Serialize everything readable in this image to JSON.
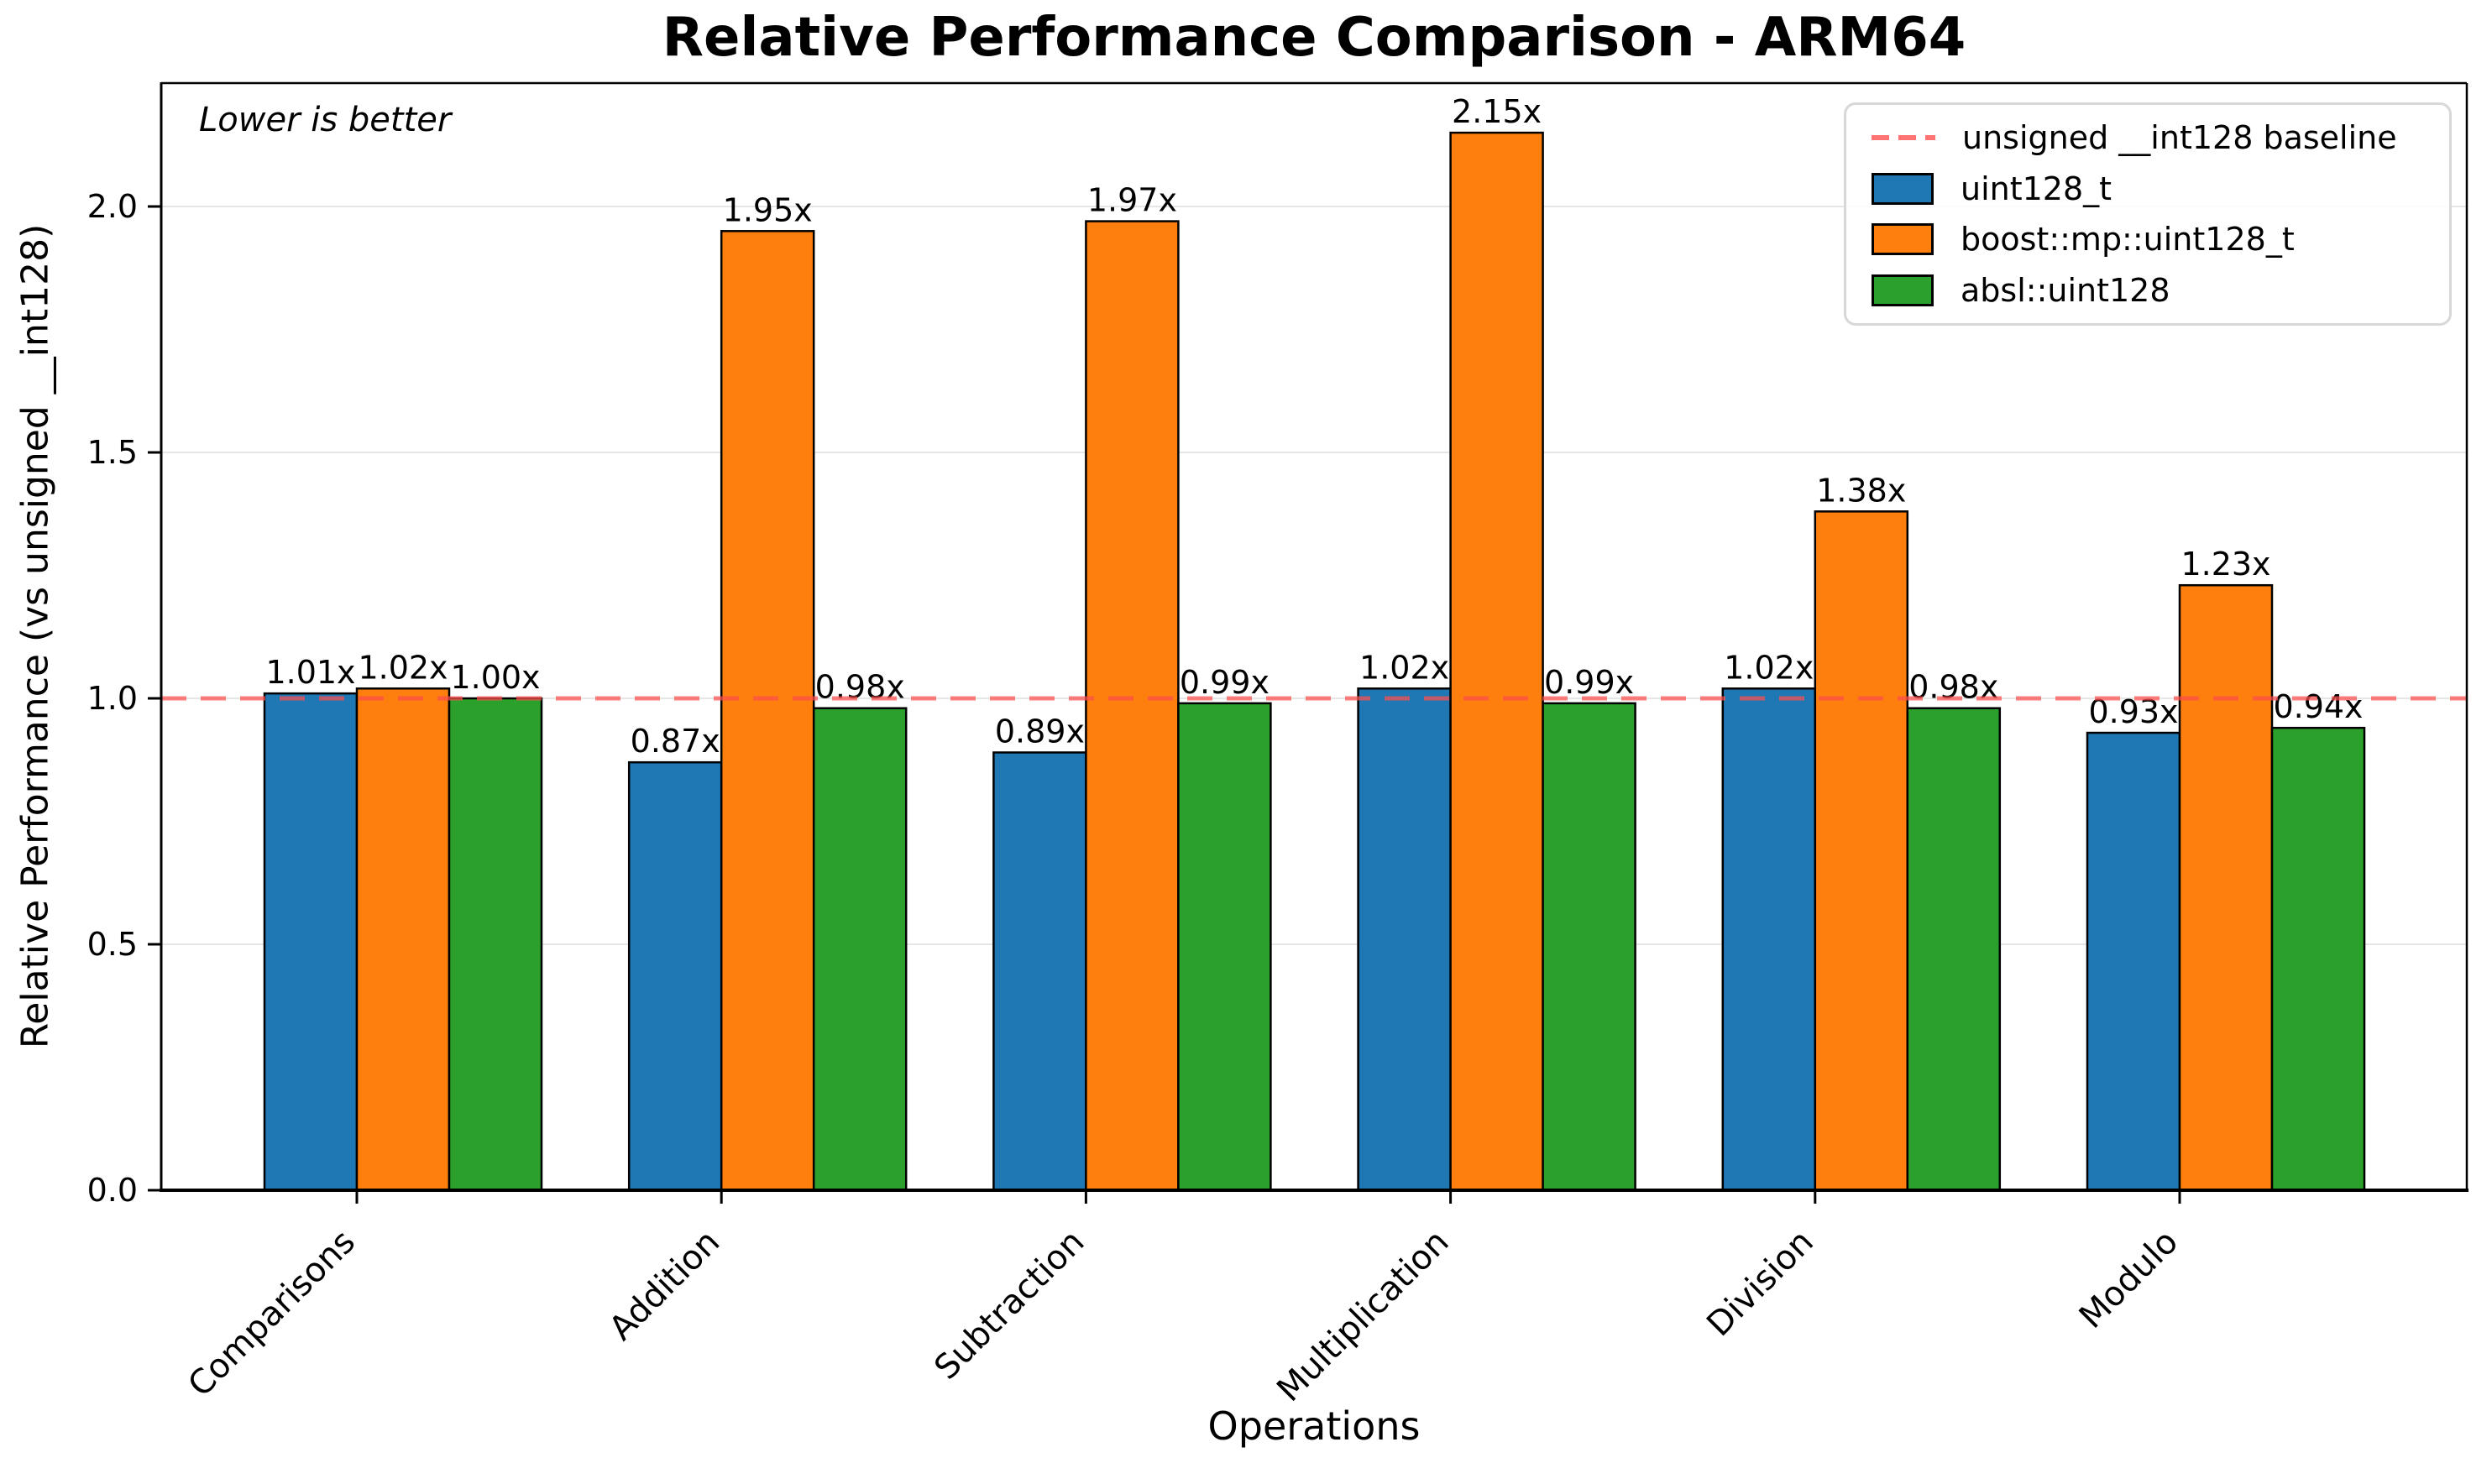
{
  "chart_data": {
    "type": "bar",
    "title": "Relative Performance Comparison - ARM64",
    "xlabel": "Operations",
    "ylabel": "Relative Performance (vs unsigned __int128)",
    "annotation": "Lower is better",
    "categories": [
      "Comparisons",
      "Addition",
      "Subtraction",
      "Multiplication",
      "Division",
      "Modulo"
    ],
    "series": [
      {
        "name": "uint128_t",
        "color": "#1f77b4",
        "values": [
          1.01,
          0.87,
          0.89,
          1.02,
          1.02,
          0.93
        ]
      },
      {
        "name": "boost::mp::uint128_t",
        "color": "#ff7f0e",
        "values": [
          1.02,
          1.95,
          1.97,
          2.15,
          1.38,
          1.23
        ]
      },
      {
        "name": "absl::uint128",
        "color": "#2ca02c",
        "values": [
          1.0,
          0.98,
          0.99,
          0.99,
          0.98,
          0.94
        ]
      }
    ],
    "bar_label_suffix": "x",
    "baseline": {
      "value": 1.0,
      "label": "unsigned __int128 baseline",
      "color": "#ff4d4d",
      "style": "dashed"
    },
    "yticks": [
      "0.0",
      "0.5",
      "1.0",
      "1.5",
      "2.0"
    ],
    "ylim": [
      0,
      2.25
    ],
    "grid": true,
    "legend_position": "upper right"
  }
}
